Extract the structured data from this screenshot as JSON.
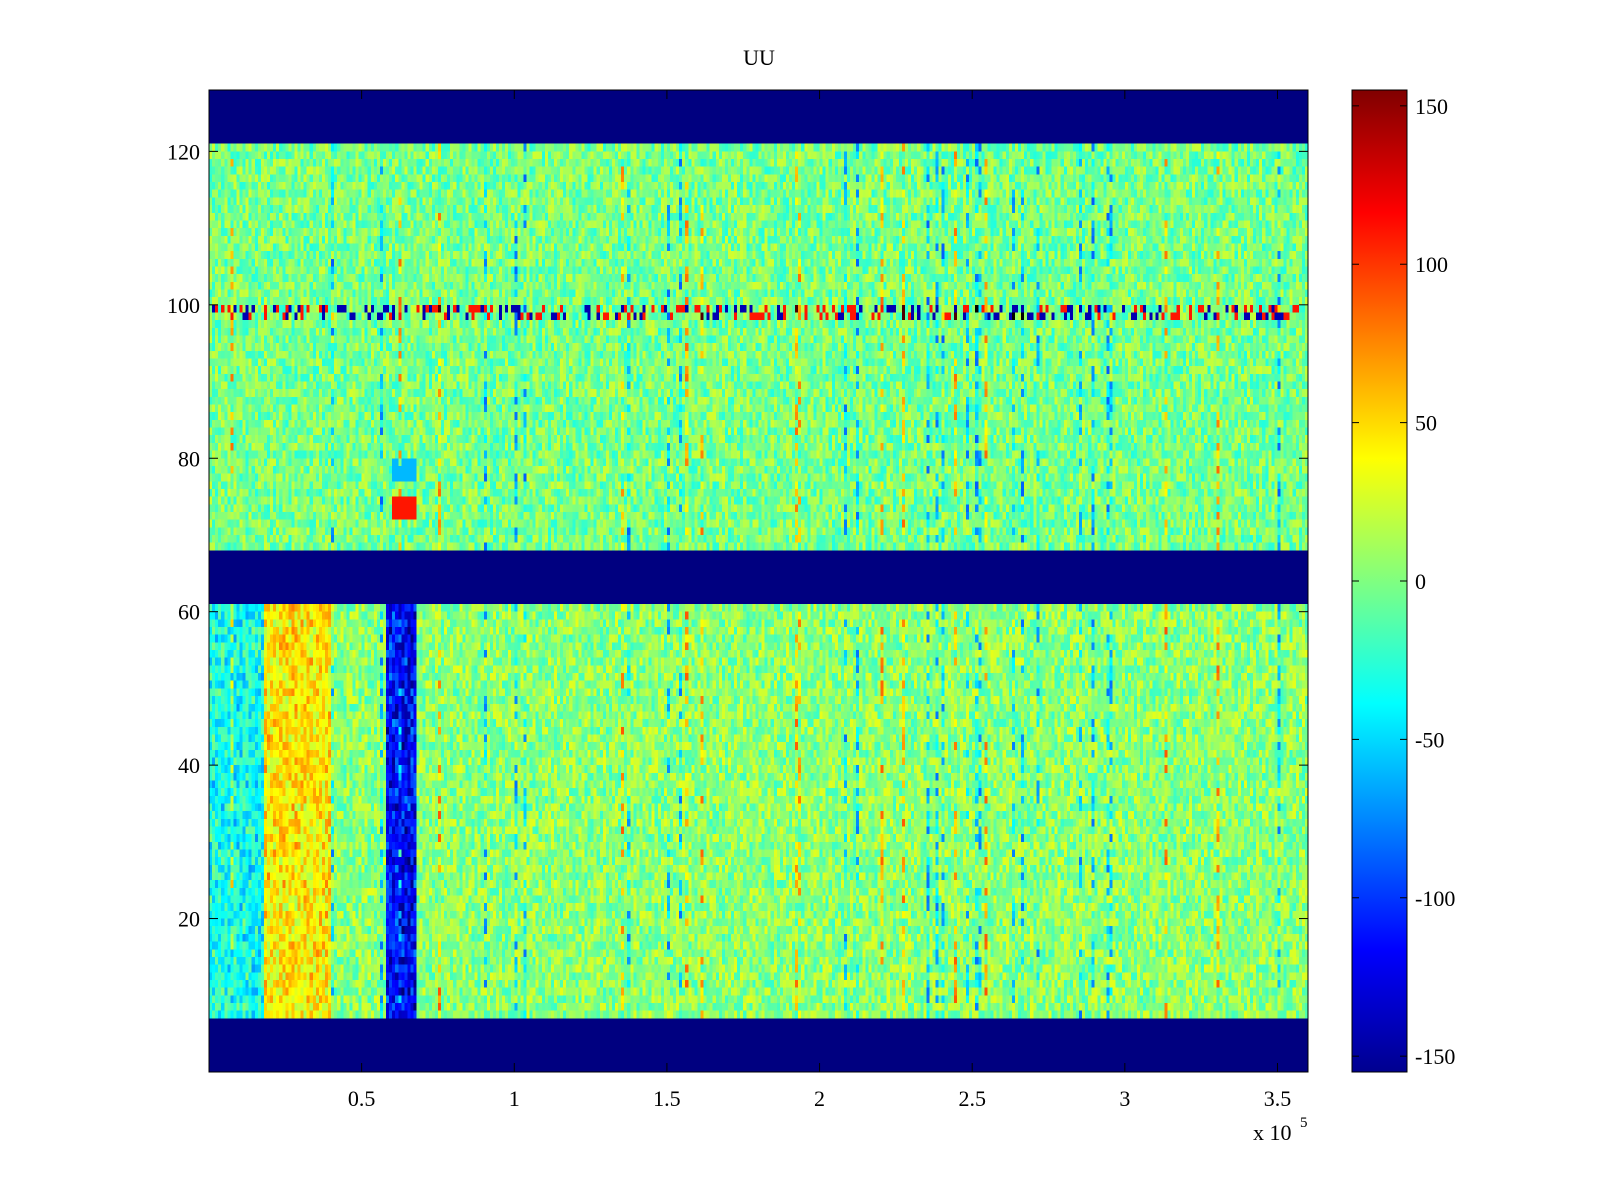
{
  "chart_data": {
    "type": "heatmap",
    "title": "UU",
    "xlabel": "",
    "ylabel": "",
    "x_multiplier": "x 10",
    "x_multiplier_exponent": "5",
    "xlim": [
      0,
      3.6
    ],
    "ylim": [
      0,
      128
    ],
    "xticks": [
      0.5,
      1,
      1.5,
      2,
      2.5,
      3,
      3.5
    ],
    "xtick_labels": [
      "0.5",
      "1",
      "1.5",
      "2",
      "2.5",
      "3",
      "3.5"
    ],
    "yticks": [
      20,
      40,
      60,
      80,
      100,
      120
    ],
    "ytick_labels": [
      "20",
      "40",
      "60",
      "80",
      "100",
      "120"
    ],
    "colormap": "jet",
    "clim": [
      -155,
      155
    ],
    "colorbar_ticks": [
      150,
      100,
      50,
      0,
      -50,
      -100,
      -150
    ],
    "colorbar_tick_labels": [
      "150",
      "100",
      "50",
      "0",
      "-50",
      "-100",
      "-150"
    ],
    "empty_bands_y": [
      [
        0,
        7
      ],
      [
        61,
        68
      ],
      [
        121,
        128
      ]
    ],
    "empty_band_value": -155,
    "dominant_value_range": [
      -30,
      30
    ],
    "notable_features": [
      {
        "y": [
          98,
          100
        ],
        "description": "row of alternating blue and red spikes",
        "values": [
          -150,
          120
        ]
      },
      {
        "x": [
          0.58,
          0.68
        ],
        "y": [
          7,
          61
        ],
        "value": -130
      },
      {
        "x": [
          0.58,
          0.68
        ],
        "y": [
          72,
          74
        ],
        "value": 110
      },
      {
        "x": [
          0.18,
          0.4
        ],
        "y": [
          7,
          61
        ],
        "value": 40
      }
    ]
  },
  "colors": {
    "axes_frame": "#000000",
    "empty_band": "#00008f",
    "background": "#ffffff"
  }
}
